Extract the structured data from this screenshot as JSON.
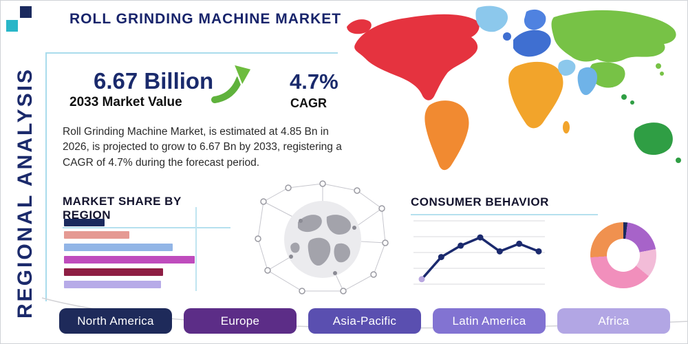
{
  "header": {
    "title": "ROLL GRINDING MACHINE MARKET",
    "side_label": "REGIONAL ANALYSIS"
  },
  "stats": {
    "value": "6.67 Billion",
    "value_caption": "2033 Market Value",
    "cagr": "4.7%",
    "cagr_caption": "CAGR"
  },
  "description": "Roll Grinding Machine Market, is estimated at 4.85 Bn in 2026, is projected to grow to 6.67 Bn by 2033, registering a CAGR of 4.7% during the forecast period.",
  "sections": {
    "market_share_title": "MARKET SHARE BY REGION",
    "consumer_behavior_title": "CONSUMER BEHAVIOR"
  },
  "colors": {
    "accent_navy": "#1b2a6b",
    "accent_lightblue": "#a9dcec",
    "arrow_green": "#5fb23c"
  },
  "region_buttons": [
    {
      "label": "North America",
      "color": "#1e2a5a"
    },
    {
      "label": "Europe",
      "color": "#5c2d87"
    },
    {
      "label": "Asia-Pacific",
      "color": "#5a4fb0"
    },
    {
      "label": "Latin America",
      "color": "#8273d2"
    },
    {
      "label": "Africa",
      "color": "#b2a6e4"
    }
  ],
  "chart_data": [
    {
      "type": "bar",
      "title": "MARKET SHARE BY REGION",
      "orientation": "horizontal",
      "xlim": [
        0,
        100
      ],
      "grid": false,
      "series": [
        {
          "name": "bar-1",
          "value": 31,
          "color": "#1b2a5e"
        },
        {
          "name": "bar-2",
          "value": 50,
          "color": "#e59a93"
        },
        {
          "name": "bar-3",
          "value": 83,
          "color": "#92b5e6"
        },
        {
          "name": "bar-4",
          "value": 100,
          "color": "#bf4cbd"
        },
        {
          "name": "bar-5",
          "value": 76,
          "color": "#8e1e44"
        },
        {
          "name": "bar-6",
          "value": 74,
          "color": "#b7abe8"
        }
      ]
    },
    {
      "type": "line",
      "title": "CONSUMER BEHAVIOR",
      "values": [
        1.0,
        4.5,
        6.3,
        7.6,
        5.4,
        6.6,
        5.4
      ],
      "ylim": [
        0,
        10
      ],
      "grid": "horizontal",
      "line_color": "#1b2a6e",
      "marker_color": "#1b2a6e",
      "first_point_color": "#b9a7e0"
    },
    {
      "type": "pie",
      "style": "donut",
      "segments": [
        {
          "value": 2,
          "color": "#1b2a5e"
        },
        {
          "value": 20,
          "color": "#a763c9"
        },
        {
          "value": 14,
          "color": "#f2bcd8"
        },
        {
          "value": 38,
          "color": "#f18fbc"
        },
        {
          "value": 26,
          "color": "#f0914f"
        }
      ]
    }
  ]
}
